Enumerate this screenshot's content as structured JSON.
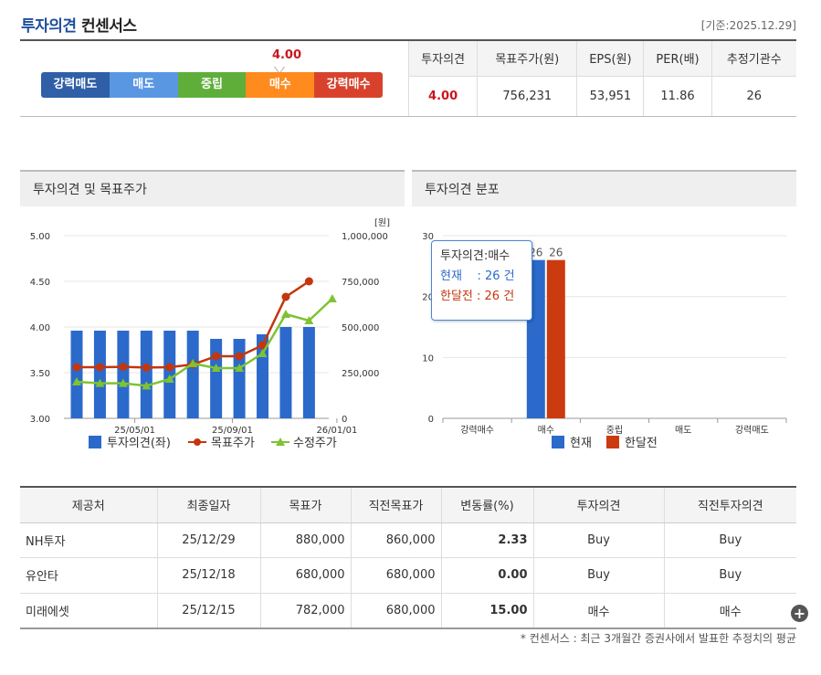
{
  "header": {
    "title_part1": "투자의견",
    "title_part2": "컨센서스",
    "date": "[기준:2025.12.29]"
  },
  "scale": {
    "labels": [
      "강력매도",
      "매도",
      "중립",
      "매수",
      "강력매수"
    ],
    "marker_value": "4.00",
    "marker_level": 4.0
  },
  "summary": {
    "headers": [
      "투자의견",
      "목표주가(원)",
      "EPS(원)",
      "PER(배)",
      "추정기관수"
    ],
    "values": [
      "4.00",
      "756,231",
      "53,951",
      "11.86",
      "26"
    ]
  },
  "panels": {
    "left_title": "투자의견 및 목표주가",
    "right_title": "투자의견 분포"
  },
  "chart_data": [
    {
      "type": "bar+line",
      "title": "투자의견 및 목표주가",
      "y_left_ticks": [
        "5.00",
        "4.50",
        "4.00",
        "3.50",
        "3.00"
      ],
      "y_left_range": [
        3.0,
        5.0
      ],
      "y_right_unit": "[원]",
      "y_right_ticks": [
        "1,000,000",
        "750,000",
        "500,000",
        "250,000",
        "0"
      ],
      "y_right_range": [
        0,
        1000000
      ],
      "x_ticks": [
        "25/05/01",
        "25/09/01",
        "26/01/01"
      ],
      "series": [
        {
          "name": "투자의견(좌)",
          "type": "bar",
          "color": "#2b6acb",
          "values": [
            3.96,
            3.96,
            3.96,
            3.96,
            3.96,
            3.96,
            3.87,
            3.87,
            3.92,
            4.0,
            4.0
          ]
        },
        {
          "name": "목표주가",
          "type": "line",
          "color": "#c4360e",
          "values": [
            280000,
            280000,
            282000,
            278000,
            280000,
            295000,
            340000,
            340000,
            400000,
            665000,
            750000
          ]
        },
        {
          "name": "수정주가",
          "type": "line",
          "color": "#7ec332",
          "values": [
            200000,
            192000,
            192000,
            178000,
            215000,
            300000,
            275000,
            275000,
            355000,
            570000,
            535000,
            655000
          ]
        }
      ],
      "legend": [
        "투자의견(좌)",
        "목표주가",
        "수정주가"
      ]
    },
    {
      "type": "bar",
      "title": "투자의견 분포",
      "categories": [
        "강력매수",
        "매수",
        "중립",
        "매도",
        "강력매도"
      ],
      "y_ticks": [
        "30",
        "20",
        "10",
        "0"
      ],
      "ylim": [
        0,
        30
      ],
      "series": [
        {
          "name": "현재",
          "color": "#2b6acb",
          "values": [
            0,
            26,
            0,
            0,
            0
          ]
        },
        {
          "name": "한달전",
          "color": "#cc3a10",
          "values": [
            0,
            26,
            0,
            0,
            0
          ]
        }
      ],
      "bar_labels": [
        "26",
        "26"
      ]
    }
  ],
  "tooltip": {
    "title": "투자의견:매수",
    "row1": "현재    : 26 건",
    "row2": "한달전 : 26 건"
  },
  "broker_table": {
    "headers": [
      "제공처",
      "최종일자",
      "목표가",
      "직전목표가",
      "변동률(%)",
      "투자의견",
      "직전투자의견"
    ],
    "rows": [
      [
        "NH투자",
        "25/12/29",
        "880,000",
        "860,000",
        "2.33",
        "Buy",
        "Buy"
      ],
      [
        "유안타",
        "25/12/18",
        "680,000",
        "680,000",
        "0.00",
        "Buy",
        "Buy"
      ],
      [
        "미래에셋",
        "25/12/15",
        "782,000",
        "680,000",
        "15.00",
        "매수",
        "매수"
      ]
    ]
  },
  "footnote": "* 컨센서스 : 최근 3개월간 증권사에서 발표한 추정치의 평균"
}
